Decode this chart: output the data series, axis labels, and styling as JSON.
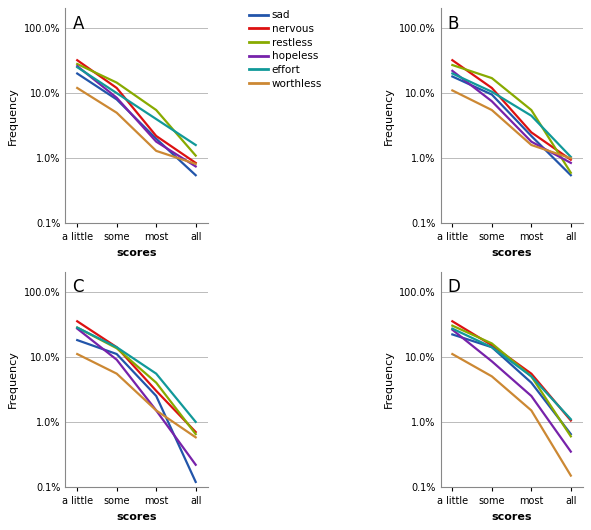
{
  "x_labels": [
    "a little",
    "some",
    "most",
    "all"
  ],
  "x_values": [
    0,
    1,
    2,
    3
  ],
  "series": {
    "sad": {
      "color": "#2255aa",
      "A": [
        20.0,
        8.0,
        2.0,
        0.55
      ],
      "B": [
        18.0,
        9.5,
        2.2,
        0.55
      ],
      "C": [
        18.0,
        11.0,
        2.5,
        0.12
      ],
      "D": [
        22.0,
        14.0,
        4.0,
        0.65
      ]
    },
    "nervous": {
      "color": "#dd1111",
      "A": [
        32.0,
        12.0,
        2.2,
        0.85
      ],
      "B": [
        32.0,
        12.0,
        2.5,
        0.95
      ],
      "C": [
        35.0,
        14.0,
        3.0,
        0.7
      ],
      "D": [
        35.0,
        15.0,
        5.5,
        1.05
      ]
    },
    "restless": {
      "color": "#88aa00",
      "A": [
        28.0,
        14.5,
        5.5,
        1.1
      ],
      "B": [
        27.0,
        17.0,
        5.5,
        0.6
      ],
      "C": [
        28.0,
        13.5,
        4.0,
        0.65
      ],
      "D": [
        30.0,
        16.0,
        5.0,
        0.6
      ]
    },
    "hopeless": {
      "color": "#7722aa",
      "A": [
        26.0,
        8.5,
        1.8,
        0.75
      ],
      "B": [
        22.0,
        7.5,
        1.8,
        0.85
      ],
      "C": [
        27.0,
        9.0,
        1.5,
        0.22
      ],
      "D": [
        26.0,
        8.5,
        2.5,
        0.35
      ]
    },
    "effort": {
      "color": "#119999",
      "A": [
        25.0,
        10.0,
        4.0,
        1.6
      ],
      "B": [
        20.0,
        10.5,
        4.5,
        1.05
      ],
      "C": [
        28.0,
        14.0,
        5.5,
        1.0
      ],
      "D": [
        27.0,
        14.0,
        5.0,
        1.1
      ]
    },
    "worthless": {
      "color": "#cc8833",
      "A": [
        12.0,
        5.0,
        1.3,
        0.82
      ],
      "B": [
        11.0,
        5.5,
        1.6,
        1.0
      ],
      "C": [
        11.0,
        5.5,
        1.5,
        0.58
      ],
      "D": [
        11.0,
        5.0,
        1.5,
        0.15
      ]
    }
  },
  "panels": [
    "A",
    "B",
    "C",
    "D"
  ],
  "ylim": [
    0.1,
    200.0
  ],
  "yticks": [
    0.1,
    1.0,
    10.0,
    100.0
  ],
  "yticklabels": [
    "0.1%",
    "1.0%",
    "10.0%",
    "100.0%"
  ],
  "ylabel": "Frequency",
  "xlabel": "scores",
  "legend_labels": [
    "sad",
    "nervous",
    "restless",
    "hopeless",
    "effort",
    "worthless"
  ],
  "legend_colors": [
    "#2255aa",
    "#dd1111",
    "#88aa00",
    "#7722aa",
    "#119999",
    "#cc8833"
  ],
  "background_color": "#ffffff",
  "grid_color": "#bbbbbb"
}
